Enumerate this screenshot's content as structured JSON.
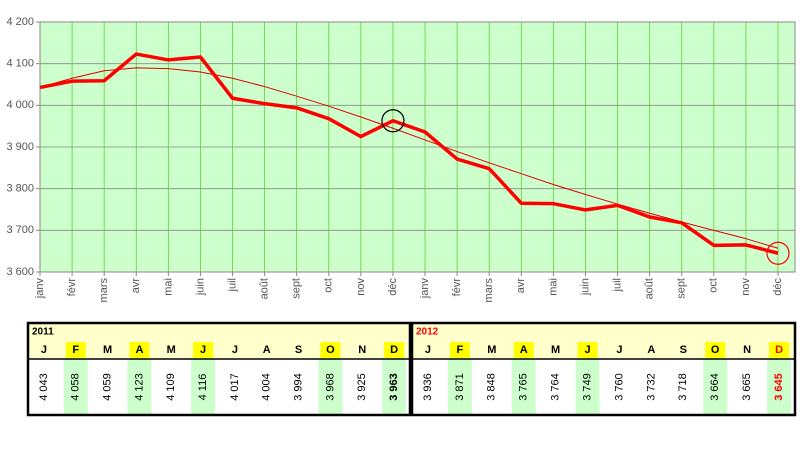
{
  "chart_data": {
    "type": "line",
    "categories": [
      "janv",
      "févr",
      "mars",
      "avr",
      "mai",
      "juin",
      "juil",
      "août",
      "sept",
      "oct",
      "nov",
      "déc",
      "janv",
      "févr",
      "mars",
      "avr",
      "mai",
      "juin",
      "juil",
      "août",
      "sept",
      "oct",
      "nov",
      "déc"
    ],
    "values": [
      4043,
      4058,
      4059,
      4123,
      4109,
      4116,
      4017,
      4004,
      3994,
      3968,
      3925,
      3963,
      3936,
      3871,
      3848,
      3765,
      3764,
      3749,
      3760,
      3732,
      3718,
      3664,
      3665,
      3645
    ],
    "value_labels": [
      "4 043",
      "4 058",
      "4 059",
      "4 123",
      "4 109",
      "4 116",
      "4 017",
      "4 004",
      "3 994",
      "3 968",
      "3 925",
      "3 963",
      "3 936",
      "3 871",
      "3 848",
      "3 765",
      "3 764",
      "3 749",
      "3 760",
      "3 732",
      "3 718",
      "3 664",
      "3 665",
      "3 645"
    ],
    "color": "#ff0000",
    "trendline": {
      "color": "#e00000",
      "values": [
        4043,
        4065,
        4083,
        4090,
        4088,
        4080,
        4065,
        4045,
        4022,
        3998,
        3972,
        3945,
        3917,
        3889,
        3862,
        3836,
        3810,
        3786,
        3763,
        3741,
        3720,
        3700,
        3680,
        3657
      ]
    },
    "ylim": [
      3600,
      4200
    ],
    "yticks": [
      {
        "value": 3600,
        "label": "3 600"
      },
      {
        "value": 3700,
        "label": "3 700"
      },
      {
        "value": 3800,
        "label": "3 800"
      },
      {
        "value": 3900,
        "label": "3 900"
      },
      {
        "value": 4000,
        "label": "4 000"
      },
      {
        "value": 4100,
        "label": "4 100"
      },
      {
        "value": 4200,
        "label": "4 200"
      }
    ],
    "grid": true,
    "background": "#ccffcc"
  },
  "table": {
    "years": [
      "2011",
      "2012"
    ],
    "year_colors": [
      "#000000",
      "#ff0000"
    ],
    "months": [
      "J",
      "F",
      "M",
      "A",
      "M",
      "J",
      "J",
      "A",
      "S",
      "O",
      "N",
      "D"
    ],
    "highlight": [
      1,
      3,
      5,
      9,
      11
    ]
  }
}
